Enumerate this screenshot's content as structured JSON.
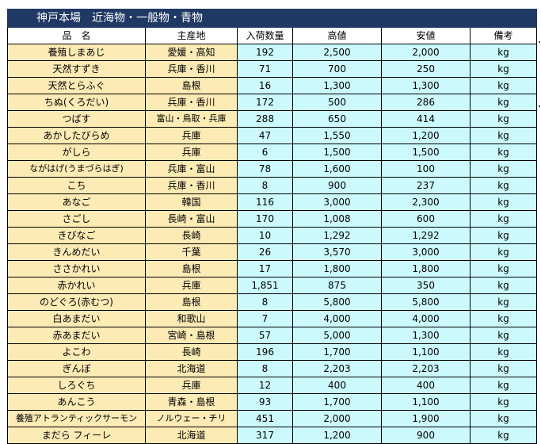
{
  "title": "神戸本場　近海物・一般物・青物",
  "columns": [
    "品　名",
    "主産地",
    "入荷数量",
    "高値",
    "安値",
    "備考"
  ],
  "rows": [
    {
      "name": "養殖しまあじ",
      "origin": "愛媛・高知",
      "qty": "192",
      "high": "2,500",
      "low": "2,000",
      "note": "kg"
    },
    {
      "name": "天然すずき",
      "origin": "兵庫・香川",
      "qty": "71",
      "high": "700",
      "low": "250",
      "note": "kg"
    },
    {
      "name": "天然とらふぐ",
      "origin": "島根",
      "qty": "16",
      "high": "1,300",
      "low": "1,300",
      "note": "kg"
    },
    {
      "name": "ちぬ(くろだい)",
      "origin": "兵庫・香川",
      "qty": "172",
      "high": "500",
      "low": "286",
      "note": "kg"
    },
    {
      "name": "つばす",
      "origin": "富山・鳥取・兵庫",
      "qty": "288",
      "high": "650",
      "low": "414",
      "note": "kg"
    },
    {
      "name": "あかしたびらめ",
      "origin": "兵庫",
      "qty": "47",
      "high": "1,550",
      "low": "1,200",
      "note": "kg"
    },
    {
      "name": "がしら",
      "origin": "兵庫",
      "qty": "6",
      "high": "1,500",
      "low": "1,500",
      "note": "kg"
    },
    {
      "name": "ながはげ(うまづらはぎ)",
      "origin": "兵庫・富山",
      "qty": "78",
      "high": "1,600",
      "low": "100",
      "note": "kg"
    },
    {
      "name": "こち",
      "origin": "兵庫・香川",
      "qty": "8",
      "high": "900",
      "low": "237",
      "note": "kg"
    },
    {
      "name": "あなご",
      "origin": "韓国",
      "qty": "116",
      "high": "3,000",
      "low": "2,300",
      "note": "kg"
    },
    {
      "name": "さごし",
      "origin": "長崎・富山",
      "qty": "170",
      "high": "1,008",
      "low": "600",
      "note": "kg"
    },
    {
      "name": "きびなご",
      "origin": "長崎",
      "qty": "10",
      "high": "1,292",
      "low": "1,292",
      "note": "kg"
    },
    {
      "name": "きんめだい",
      "origin": "千葉",
      "qty": "26",
      "high": "3,570",
      "low": "3,000",
      "note": "kg"
    },
    {
      "name": "ささかれい",
      "origin": "島根",
      "qty": "17",
      "high": "1,800",
      "low": "1,800",
      "note": "kg"
    },
    {
      "name": "赤かれい",
      "origin": "兵庫",
      "qty": "1,851",
      "high": "875",
      "low": "350",
      "note": "kg"
    },
    {
      "name": "のどぐろ(赤むつ)",
      "origin": "島根",
      "qty": "8",
      "high": "5,800",
      "low": "5,800",
      "note": "kg"
    },
    {
      "name": "白あまだい",
      "origin": "和歌山",
      "qty": "7",
      "high": "4,000",
      "low": "4,000",
      "note": "kg"
    },
    {
      "name": "赤あまだい",
      "origin": "宮崎・島根",
      "qty": "57",
      "high": "5,000",
      "low": "1,300",
      "note": "kg"
    },
    {
      "name": "よこわ",
      "origin": "長崎",
      "qty": "196",
      "high": "1,700",
      "low": "1,100",
      "note": "kg"
    },
    {
      "name": "ぎんぼ",
      "origin": "北海道",
      "qty": "8",
      "high": "2,203",
      "low": "2,203",
      "note": "kg"
    },
    {
      "name": "しろぐち",
      "origin": "兵庫",
      "qty": "12",
      "high": "400",
      "low": "400",
      "note": "kg"
    },
    {
      "name": "あんこう",
      "origin": "青森・島根",
      "qty": "93",
      "high": "1,700",
      "low": "1,100",
      "note": "kg"
    },
    {
      "name": "養殖アトランティックサーモン",
      "origin": "ノルウェー・チリ",
      "qty": "451",
      "high": "2,000",
      "low": "1,900",
      "note": "kg"
    },
    {
      "name": "まだら フィーレ",
      "origin": "北海道",
      "qty": "317",
      "high": "1,200",
      "low": "900",
      "note": "kg"
    }
  ],
  "colors": {
    "title_bg": "#1f3864",
    "name_bg": "#fcebb5",
    "value_bg": "#ccfafc"
  }
}
